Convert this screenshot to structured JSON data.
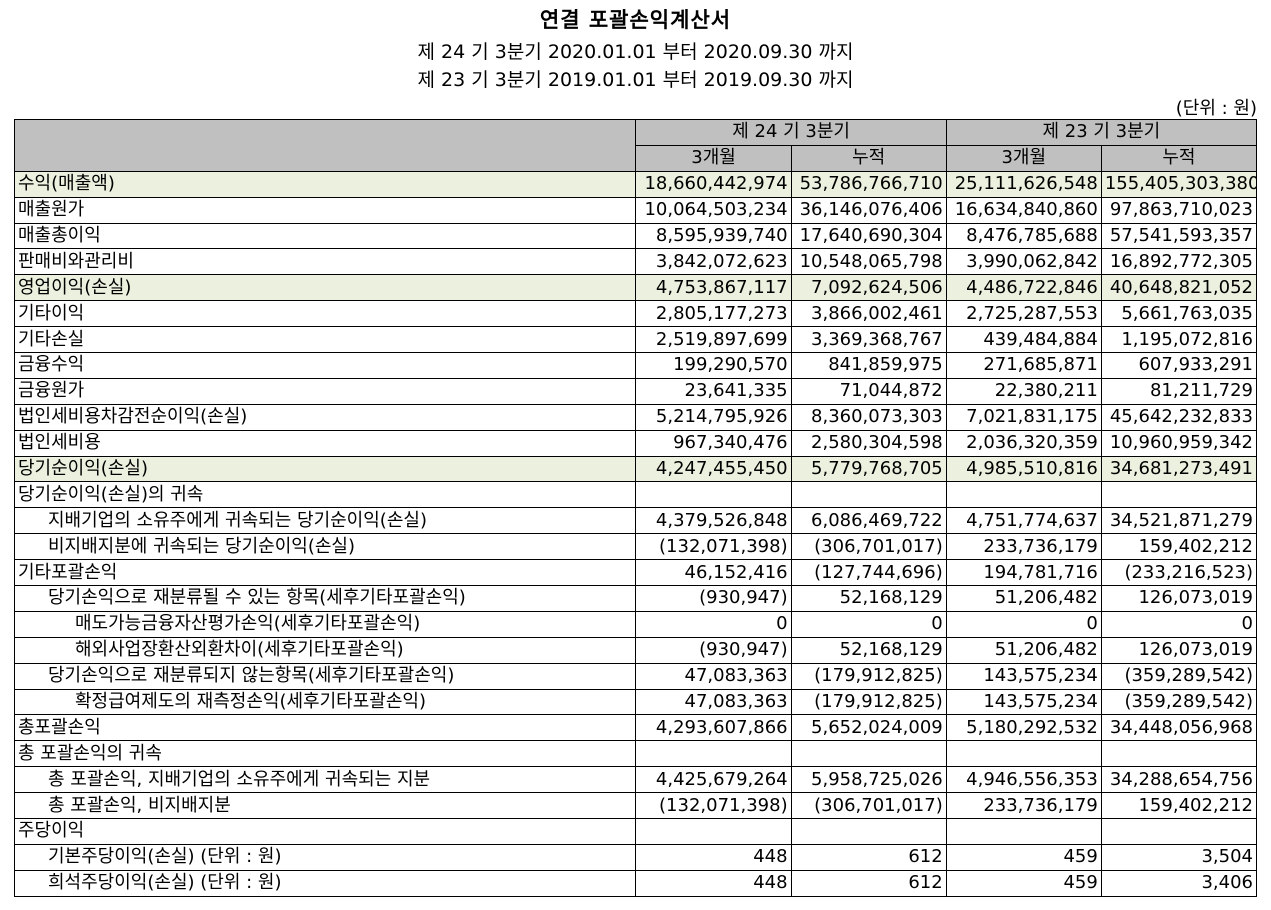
{
  "title": "연결 포괄손익계산서",
  "period_current": "제 24 기 3분기 2020.01.01 부터 2020.09.30 까지",
  "period_prior": "제 23 기 3분기 2019.01.01 부터 2019.09.30 까지",
  "unit": "(단위 : 원)",
  "header": {
    "current_period": "제 24 기 3분기",
    "prior_period": "제 23 기 3분기",
    "three_months": "3개월",
    "cumulative": "누적"
  },
  "rows": [
    {
      "label": "수익(매출액)",
      "indent": 0,
      "highlight": true,
      "values": [
        "18,660,442,974",
        "53,786,766,710",
        "25,111,626,548",
        "155,405,303,380"
      ]
    },
    {
      "label": "매출원가",
      "indent": 0,
      "highlight": false,
      "values": [
        "10,064,503,234",
        "36,146,076,406",
        "16,634,840,860",
        "97,863,710,023"
      ]
    },
    {
      "label": "매출총이익",
      "indent": 0,
      "highlight": false,
      "values": [
        "8,595,939,740",
        "17,640,690,304",
        "8,476,785,688",
        "57,541,593,357"
      ]
    },
    {
      "label": "판매비와관리비",
      "indent": 0,
      "highlight": false,
      "values": [
        "3,842,072,623",
        "10,548,065,798",
        "3,990,062,842",
        "16,892,772,305"
      ]
    },
    {
      "label": "영업이익(손실)",
      "indent": 0,
      "highlight": true,
      "values": [
        "4,753,867,117",
        "7,092,624,506",
        "4,486,722,846",
        "40,648,821,052"
      ]
    },
    {
      "label": "기타이익",
      "indent": 0,
      "highlight": false,
      "values": [
        "2,805,177,273",
        "3,866,002,461",
        "2,725,287,553",
        "5,661,763,035"
      ]
    },
    {
      "label": "기타손실",
      "indent": 0,
      "highlight": false,
      "values": [
        "2,519,897,699",
        "3,369,368,767",
        "439,484,884",
        "1,195,072,816"
      ]
    },
    {
      "label": "금융수익",
      "indent": 0,
      "highlight": false,
      "values": [
        "199,290,570",
        "841,859,975",
        "271,685,871",
        "607,933,291"
      ]
    },
    {
      "label": "금융원가",
      "indent": 0,
      "highlight": false,
      "values": [
        "23,641,335",
        "71,044,872",
        "22,380,211",
        "81,211,729"
      ]
    },
    {
      "label": "법인세비용차감전순이익(손실)",
      "indent": 0,
      "highlight": false,
      "values": [
        "5,214,795,926",
        "8,360,073,303",
        "7,021,831,175",
        "45,642,232,833"
      ]
    },
    {
      "label": "법인세비용",
      "indent": 0,
      "highlight": false,
      "values": [
        "967,340,476",
        "2,580,304,598",
        "2,036,320,359",
        "10,960,959,342"
      ]
    },
    {
      "label": "당기순이익(손실)",
      "indent": 0,
      "highlight": true,
      "values": [
        "4,247,455,450",
        "5,779,768,705",
        "4,985,510,816",
        "34,681,273,491"
      ]
    },
    {
      "label": "당기순이익(손실)의 귀속",
      "indent": 0,
      "highlight": false,
      "values": [
        "",
        "",
        "",
        ""
      ]
    },
    {
      "label": "지배기업의 소유주에게 귀속되는 당기순이익(손실)",
      "indent": 1,
      "highlight": false,
      "values": [
        "4,379,526,848",
        "6,086,469,722",
        "4,751,774,637",
        "34,521,871,279"
      ]
    },
    {
      "label": "비지배지분에 귀속되는 당기순이익(손실)",
      "indent": 1,
      "highlight": false,
      "values": [
        "(132,071,398)",
        "(306,701,017)",
        "233,736,179",
        "159,402,212"
      ]
    },
    {
      "label": "기타포괄손익",
      "indent": 0,
      "highlight": false,
      "values": [
        "46,152,416",
        "(127,744,696)",
        "194,781,716",
        "(233,216,523)"
      ]
    },
    {
      "label": "당기손익으로 재분류될 수 있는 항목(세후기타포괄손익)",
      "indent": 1,
      "highlight": false,
      "values": [
        "(930,947)",
        "52,168,129",
        "51,206,482",
        "126,073,019"
      ]
    },
    {
      "label": "매도가능금융자산평가손익(세후기타포괄손익)",
      "indent": 2,
      "highlight": false,
      "values": [
        "0",
        "0",
        "0",
        "0"
      ]
    },
    {
      "label": "해외사업장환산외환차이(세후기타포괄손익)",
      "indent": 2,
      "highlight": false,
      "values": [
        "(930,947)",
        "52,168,129",
        "51,206,482",
        "126,073,019"
      ]
    },
    {
      "label": "당기손익으로 재분류되지 않는항목(세후기타포괄손익)",
      "indent": 1,
      "highlight": false,
      "values": [
        "47,083,363",
        "(179,912,825)",
        "143,575,234",
        "(359,289,542)"
      ]
    },
    {
      "label": "확정급여제도의 재측정손익(세후기타포괄손익)",
      "indent": 2,
      "highlight": false,
      "values": [
        "47,083,363",
        "(179,912,825)",
        "143,575,234",
        "(359,289,542)"
      ]
    },
    {
      "label": "총포괄손익",
      "indent": 0,
      "highlight": false,
      "values": [
        "4,293,607,866",
        "5,652,024,009",
        "5,180,292,532",
        "34,448,056,968"
      ]
    },
    {
      "label": "총 포괄손익의 귀속",
      "indent": 0,
      "highlight": false,
      "values": [
        "",
        "",
        "",
        ""
      ]
    },
    {
      "label": "총 포괄손익, 지배기업의 소유주에게 귀속되는 지분",
      "indent": 1,
      "highlight": false,
      "values": [
        "4,425,679,264",
        "5,958,725,026",
        "4,946,556,353",
        "34,288,654,756"
      ]
    },
    {
      "label": "총 포괄손익, 비지배지분",
      "indent": 1,
      "highlight": false,
      "values": [
        "(132,071,398)",
        "(306,701,017)",
        "233,736,179",
        "159,402,212"
      ]
    },
    {
      "label": "주당이익",
      "indent": 0,
      "highlight": false,
      "values": [
        "",
        "",
        "",
        ""
      ]
    },
    {
      "label": "기본주당이익(손실) (단위 : 원)",
      "indent": 1,
      "highlight": false,
      "values": [
        "448",
        "612",
        "459",
        "3,504"
      ]
    },
    {
      "label": "희석주당이익(손실) (단위 : 원)",
      "indent": 1,
      "highlight": false,
      "values": [
        "448",
        "612",
        "459",
        "3,406"
      ]
    }
  ]
}
